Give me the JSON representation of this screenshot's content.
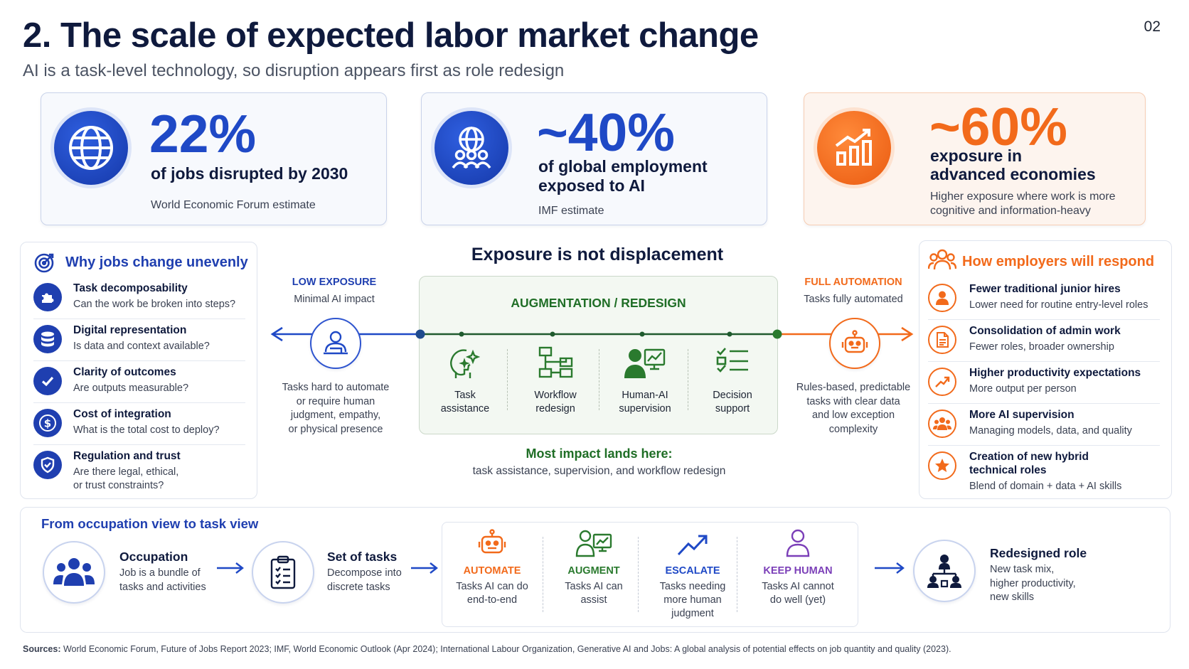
{
  "header": {
    "title": "2. The scale of expected labor market change",
    "subtitle": "AI is a task-level technology, so disruption appears first as role redesign",
    "page_number": "02"
  },
  "stats": [
    {
      "value": "22%",
      "label": "of jobs disrupted by 2030",
      "source": "World Economic Forum estimate",
      "icon": "globe-icon",
      "color": "#1f49c6"
    },
    {
      "value": "~40%",
      "label_line1": "of global employment",
      "label_line2": "exposed to AI",
      "source": "IMF estimate",
      "icon": "globe-people-icon",
      "color": "#1f49c6"
    },
    {
      "value": "~60%",
      "label_line1": "exposure in",
      "label_line2": "advanced economies",
      "source_line1": "Higher exposure where work is more",
      "source_line2": "cognitive and information-heavy",
      "icon": "growth-chart-icon",
      "color": "#f26a1b"
    }
  ],
  "why_panel": {
    "title": "Why jobs change unevenly",
    "items": [
      {
        "title": "Task decomposability",
        "sub": "Can the work be broken into steps?",
        "icon": "puzzle-icon"
      },
      {
        "title": "Digital representation",
        "sub": "Is data and context available?",
        "icon": "database-icon"
      },
      {
        "title": "Clarity of outcomes",
        "sub": "Are outputs measurable?",
        "icon": "check-icon"
      },
      {
        "title": "Cost of integration",
        "sub": "What is the total cost to deploy?",
        "icon": "dollar-icon"
      },
      {
        "title": "Regulation and trust",
        "sub": "Are there legal, ethical,",
        "sub2": "or trust constraints?",
        "icon": "shield-icon"
      }
    ]
  },
  "spectrum": {
    "title": "Exposure is not displacement",
    "low": {
      "head": "LOW EXPOSURE",
      "sub": "Minimal AI impact",
      "desc": [
        "Tasks hard to automate",
        "or require human",
        "judgment, empathy,",
        "or physical presence"
      ]
    },
    "middle": {
      "head": "AUGMENTATION / REDESIGN",
      "items": [
        {
          "line1": "Task",
          "line2": "assistance",
          "icon": "head-sparkle-icon"
        },
        {
          "line1": "Workflow",
          "line2": "redesign",
          "icon": "workflow-icon"
        },
        {
          "line1": "Human-AI",
          "line2": "supervision",
          "icon": "person-monitor-icon"
        },
        {
          "line1": "Decision",
          "line2": "support",
          "icon": "checklist-icon"
        }
      ]
    },
    "full": {
      "head": "FULL AUTOMATION",
      "sub": "Tasks fully automated",
      "desc": [
        "Rules-based, predictable",
        "tasks with clear data",
        "and low exception",
        "complexity"
      ]
    },
    "impact_title": "Most impact lands here:",
    "impact_sub": "task assistance, supervision, and workflow redesign"
  },
  "employers_panel": {
    "title": "How employers will respond",
    "items": [
      {
        "title": "Fewer traditional junior hires",
        "sub": "Lower need for routine entry-level roles",
        "icon": "person-icon"
      },
      {
        "title": "Consolidation of admin work",
        "sub": "Fewer roles, broader ownership",
        "icon": "document-icon"
      },
      {
        "title": "Higher productivity expectations",
        "sub": "More output per person",
        "icon": "trend-up-icon"
      },
      {
        "title": "More AI supervision",
        "sub": "Managing models, data, and quality",
        "icon": "team-icon"
      },
      {
        "title": "Creation of new hybrid",
        "title2": "technical roles",
        "sub": "Blend of domain + data + AI skills",
        "icon": "star-icon"
      }
    ]
  },
  "task_view": {
    "title": "From occupation view to task view",
    "occupation": {
      "title": "Occupation",
      "sub": [
        "Job is a bundle of",
        "tasks and activities"
      ]
    },
    "tasks": {
      "title": "Set of tasks",
      "sub": [
        "Decompose into",
        "discrete tasks"
      ]
    },
    "categories": [
      {
        "head": "AUTOMATE",
        "desc": [
          "Tasks AI can do",
          "end-to-end"
        ],
        "color": "#f26a1b",
        "icon": "robot-icon"
      },
      {
        "head": "AUGMENT",
        "desc": [
          "Tasks AI can",
          "assist"
        ],
        "color": "#2a7a2e",
        "icon": "person-chart-icon"
      },
      {
        "head": "ESCALATE",
        "desc": [
          "Tasks needing",
          "more human",
          "judgment"
        ],
        "color": "#1f49c6",
        "icon": "trend-up-icon"
      },
      {
        "head": "KEEP HUMAN",
        "desc": [
          "Tasks AI cannot",
          "do well (yet)"
        ],
        "color": "#7b3fb8",
        "icon": "person-outline-icon"
      }
    ],
    "redesigned": {
      "title": "Redesigned role",
      "sub": [
        "New task mix,",
        "higher productivity,",
        "new skills"
      ]
    }
  },
  "sources": {
    "label": "Sources:",
    "text": " World Economic Forum, Future of Jobs Report 2023; IMF, World Economic Outlook (Apr 2024); International Labour Organization, Generative AI and Jobs: A global analysis of potential effects on job quantity and quality (2023)."
  }
}
